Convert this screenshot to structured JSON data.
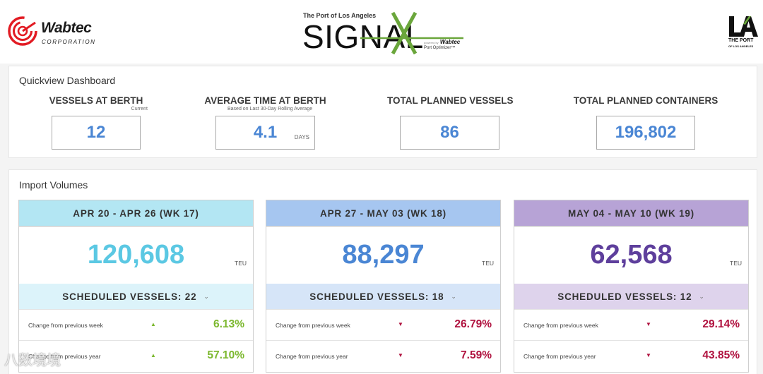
{
  "header": {
    "wabtec_name": "Wabtec",
    "wabtec_corp": "CORPORATION",
    "signal_subtitle": "The Port of Los Angeles",
    "signal_word": "SIGNAL",
    "signal_powered": "Wabtec",
    "signal_powered_prefix": "powered by",
    "signal_optimizer": "Port Optimizer™",
    "la_mark": "LA",
    "la_port": "THE PORT",
    "la_sub": "OF LOS ANGELES"
  },
  "quickview": {
    "title": "Quickview Dashboard",
    "kpis": [
      {
        "label": "VESSELS AT BERTH",
        "sub": "Current",
        "value": "12",
        "unit": ""
      },
      {
        "label": "AVERAGE TIME AT BERTH",
        "sub": "Based on Last 30-Day Rolling Average",
        "value": "4.1",
        "unit": "DAYS"
      },
      {
        "label": "TOTAL PLANNED VESSELS",
        "sub": "",
        "value": "86",
        "unit": ""
      },
      {
        "label": "TOTAL PLANNED CONTAINERS",
        "sub": "",
        "value": "196,802",
        "unit": ""
      }
    ]
  },
  "imports": {
    "title": "Import Volumes",
    "teu_label": "TEU",
    "cards": [
      {
        "week": "APR 20 - APR 26 (WK 17)",
        "volume": "120,608",
        "scheduled": "SCHEDULED VESSELS: 22",
        "head_color": "#b3e6f3",
        "sched_color": "#dcf3fa",
        "volume_color": "#5bc8e3",
        "rows": [
          {
            "label": "Change from previous week",
            "value": "6.13%",
            "direction": "up"
          },
          {
            "label": "Change from previous year",
            "value": "57.10%",
            "direction": "up"
          }
        ]
      },
      {
        "week": "APR 27 - MAY 03 (WK 18)",
        "volume": "88,297",
        "scheduled": "SCHEDULED VESSELS: 18",
        "head_color": "#a6c6f0",
        "sched_color": "#d6e5f8",
        "volume_color": "#4a86d4",
        "rows": [
          {
            "label": "Change from previous week",
            "value": "26.79%",
            "direction": "down"
          },
          {
            "label": "Change from previous year",
            "value": "7.59%",
            "direction": "down"
          }
        ]
      },
      {
        "week": "MAY 04 - MAY 10 (WK 19)",
        "volume": "62,568",
        "scheduled": "SCHEDULED VESSELS: 12",
        "head_color": "#b7a3d6",
        "sched_color": "#ded3ec",
        "volume_color": "#5e3f9c",
        "rows": [
          {
            "label": "Change from previous week",
            "value": "29.14%",
            "direction": "down"
          },
          {
            "label": "Change from previous year",
            "value": "43.85%",
            "direction": "down"
          }
        ]
      }
    ]
  },
  "icons": {
    "chevron": "chevron-down-icon",
    "arrow_up": "triangle-up-icon",
    "arrow_down": "triangle-down-icon"
  },
  "watermark": "八数境境"
}
